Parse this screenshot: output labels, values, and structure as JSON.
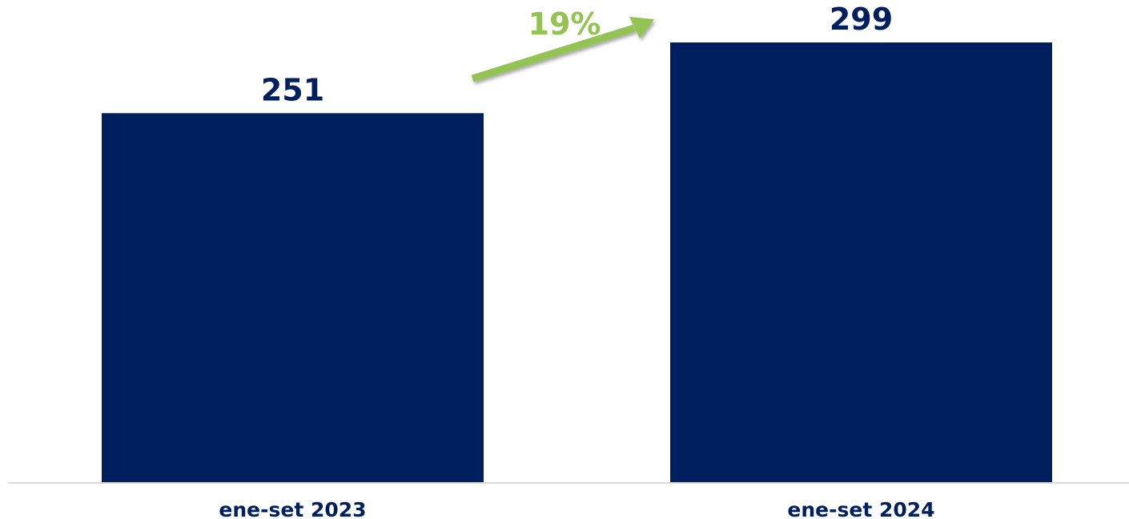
{
  "chart_data": {
    "type": "bar",
    "categories": [
      "ene-set 2023",
      "ene-set 2024"
    ],
    "values": [
      251,
      299
    ],
    "value_labels": [
      "251",
      "299"
    ],
    "growth_annotation": "19%",
    "title": "",
    "xlabel": "",
    "ylabel": "",
    "ylim": [
      0,
      299
    ],
    "grid": false,
    "legend": "none"
  },
  "colors": {
    "bar": "#001F5F",
    "label": "#001F5F",
    "growth": "#92C353",
    "baseline": "#D9D9D9"
  }
}
